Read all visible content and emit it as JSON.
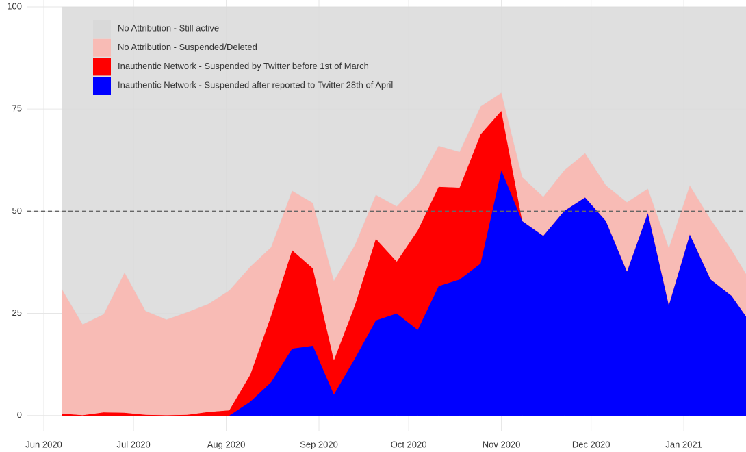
{
  "chart_data": {
    "type": "stacked_area",
    "x": [
      6,
      13,
      20,
      27,
      34,
      41,
      48,
      55,
      62,
      69,
      76,
      83,
      90,
      97,
      104,
      111,
      118,
      125,
      132,
      139,
      146,
      153,
      160,
      167,
      174,
      181,
      188,
      195,
      202,
      209,
      216,
      223,
      230,
      237
    ],
    "xlim": [
      -5.5,
      234.8
    ],
    "xticks": [
      {
        "value": 0,
        "label": "Jun 2020"
      },
      {
        "value": 30,
        "label": "Jul 2020"
      },
      {
        "value": 61,
        "label": "Aug 2020"
      },
      {
        "value": 92,
        "label": "Sep 2020"
      },
      {
        "value": 122,
        "label": "Oct 2020"
      },
      {
        "value": 153,
        "label": "Nov 2020"
      },
      {
        "value": 183,
        "label": "Dec 2020"
      },
      {
        "value": 214,
        "label": "Jan 2021"
      }
    ],
    "ylim": [
      -3.9,
      100
    ],
    "yticks": [
      0,
      25,
      50,
      75,
      100
    ],
    "grid": true,
    "hline": 50,
    "legend": "top-left",
    "series": [
      {
        "name": "Inauthentic Network - Suspended after reported to Twitter 28th of April",
        "color": "#0000ff",
        "values": [
          0,
          0,
          0,
          0,
          0,
          0,
          0,
          0,
          0,
          3.4,
          8.2,
          16.4,
          17.1,
          5.2,
          14,
          23.3,
          25,
          21,
          31.7,
          33.3,
          37.2,
          60.1,
          47.6,
          44,
          50.1,
          53.4,
          47.6,
          35.3,
          49.7,
          27.1,
          44.4,
          33.3,
          29.3,
          22
        ]
      },
      {
        "name": "Inauthentic Network - Suspended by Twitter before 1st of March",
        "color": "#ff0000",
        "values": [
          0.5,
          0.1,
          0.8,
          0.7,
          0.2,
          0.1,
          0.2,
          0.9,
          1.3,
          6.6,
          16.3,
          24.1,
          18.9,
          8.4,
          13,
          20,
          12.7,
          24.3,
          24.3,
          22.5,
          31.6,
          14.5,
          0,
          0,
          0,
          0,
          0,
          0,
          0,
          0,
          0,
          0,
          0,
          0
        ]
      },
      {
        "name": "No Attribution - Suspended/Deleted",
        "color": "#f8bbb5",
        "values": [
          30.5,
          22.2,
          24,
          34.3,
          25.4,
          23.4,
          25.1,
          26.4,
          29.3,
          26.4,
          16.7,
          14.5,
          16,
          19.4,
          14.7,
          10.7,
          13.5,
          11.2,
          10,
          8.7,
          6.8,
          4.4,
          10.7,
          9.5,
          9.9,
          10.8,
          8.7,
          16.9,
          5.8,
          13.9,
          11.9,
          14.7,
          11.2,
          10
        ]
      },
      {
        "name": "No Attribution - Still active",
        "color": "#d9d9d9",
        "values": [
          69,
          77.7,
          75.2,
          65,
          74.4,
          76.5,
          74.7,
          72.7,
          69.4,
          63.6,
          58.8,
          45,
          48,
          67,
          58.3,
          46,
          48.8,
          43.5,
          34,
          35.5,
          24.4,
          21,
          41.7,
          46.5,
          40,
          35.8,
          43.7,
          47.8,
          44.5,
          59,
          43.7,
          52,
          59.5,
          68
        ]
      }
    ]
  }
}
